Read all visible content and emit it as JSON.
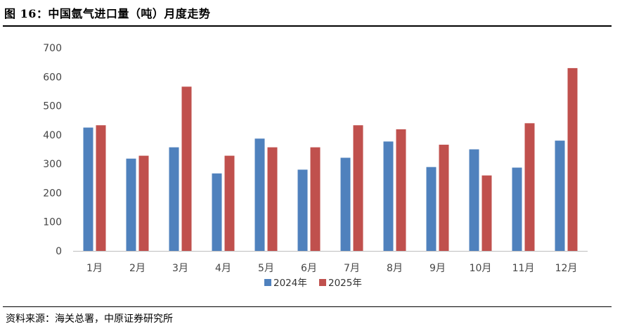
{
  "figure": {
    "title": "图 16：中国氩气进口量（吨）月度走势",
    "source": "资料来源：海关总署，中原证券研究所"
  },
  "chart_data": {
    "type": "bar",
    "title": "图 16：中国氩气进口量（吨）月度走势",
    "xlabel": "",
    "ylabel": "",
    "ylim": [
      0,
      700
    ],
    "yticks": [
      0,
      100,
      200,
      300,
      400,
      500,
      600,
      700
    ],
    "grid": false,
    "legend": "bottom",
    "categories": [
      "1月",
      "2月",
      "3月",
      "4月",
      "5月",
      "6月",
      "7月",
      "8月",
      "9月",
      "10月",
      "11月",
      "12月"
    ],
    "series": [
      {
        "name": "2024年",
        "color": "#4f81bd",
        "values": [
          425,
          318,
          357,
          267,
          387,
          280,
          321,
          377,
          289,
          350,
          287,
          380
        ]
      },
      {
        "name": "2025年",
        "color": "#c0504d",
        "values": [
          433,
          328,
          566,
          328,
          357,
          357,
          433,
          419,
          366,
          260,
          440,
          630
        ]
      }
    ]
  }
}
